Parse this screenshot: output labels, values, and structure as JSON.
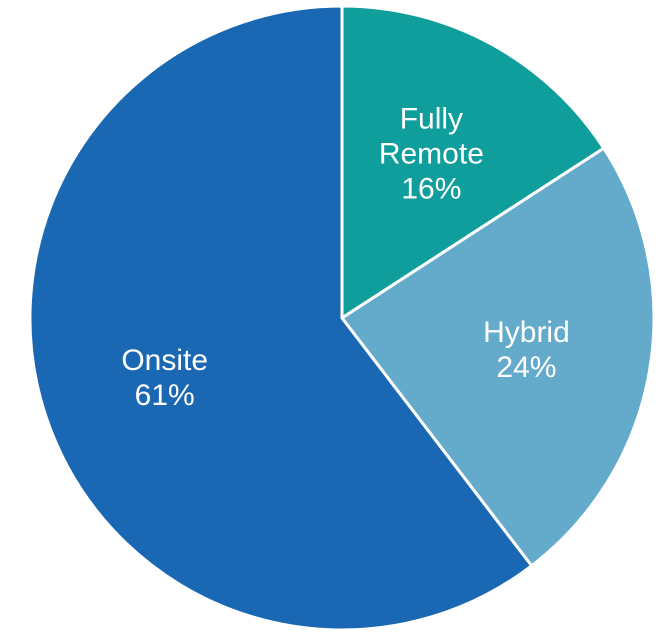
{
  "chart_data": {
    "type": "pie",
    "categories": [
      "Fully Remote",
      "Hybrid",
      "Onsite"
    ],
    "values": [
      16,
      24,
      61
    ],
    "value_labels": [
      "16%",
      "24%",
      "61%"
    ],
    "colors": [
      "#0f9e9c",
      "#64abcb",
      "#1a67b3"
    ]
  }
}
